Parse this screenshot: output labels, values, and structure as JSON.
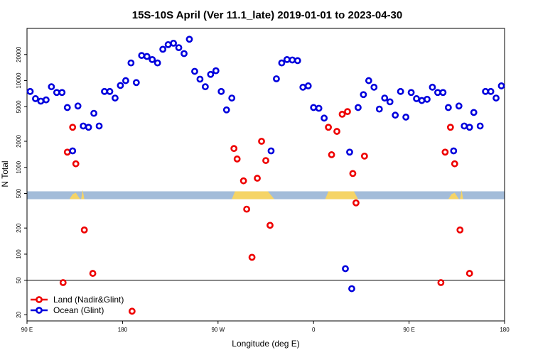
{
  "chart_data": {
    "type": "scatter",
    "title": "15S-10S April (Ver 11.1_late)   2019-01-01 to 2023-04-30",
    "xlabel": "Longitude (deg E)",
    "ylabel": "N Total",
    "y_scale": "log",
    "xlim": [
      90,
      540
    ],
    "ylim": [
      17,
      40000
    ],
    "x_ticks": [
      {
        "value": 90,
        "label": "90 E"
      },
      {
        "value": 180,
        "label": "180"
      },
      {
        "value": 270,
        "label": "90 W"
      },
      {
        "value": 360,
        "label": "0"
      },
      {
        "value": 450,
        "label": "90 E"
      },
      {
        "value": 540,
        "label": "180"
      }
    ],
    "y_ticks": [
      {
        "value": 20,
        "label": "20"
      },
      {
        "value": 50,
        "label": "50"
      },
      {
        "value": 100,
        "label": "100"
      },
      {
        "value": 200,
        "label": "200"
      },
      {
        "value": 500,
        "label": "500"
      },
      {
        "value": 1000,
        "label": "1000"
      },
      {
        "value": 2000,
        "label": "2000"
      },
      {
        "value": 5000,
        "label": "5000"
      },
      {
        "value": 10000,
        "label": "10000"
      },
      {
        "value": 20000,
        "label": "20000"
      }
    ],
    "reference_line": 50,
    "land_band": {
      "ymin": 430,
      "ymax": 530,
      "water_color": "#a3bcd9",
      "land_color": "#f5d466"
    },
    "legend_position": "bottom-left",
    "series": [
      {
        "name": "Land (Nadir&Glint)",
        "color": "#ee0000",
        "points": [
          [
            124,
            47
          ],
          [
            128,
            1500
          ],
          [
            133,
            2900
          ],
          [
            136,
            1100
          ],
          [
            144,
            190
          ],
          [
            152,
            60
          ],
          [
            189,
            22
          ],
          [
            285,
            1650
          ],
          [
            288,
            1250
          ],
          [
            294,
            700
          ],
          [
            297,
            330
          ],
          [
            302,
            92
          ],
          [
            307,
            750
          ],
          [
            311,
            2000
          ],
          [
            315,
            1200
          ],
          [
            319,
            215
          ],
          [
            374,
            2900
          ],
          [
            377,
            1400
          ],
          [
            382,
            2600
          ],
          [
            387,
            4100
          ],
          [
            392,
            4400
          ],
          [
            397,
            850
          ],
          [
            400,
            390
          ],
          [
            408,
            1350
          ],
          [
            480,
            47
          ],
          [
            484,
            1500
          ],
          [
            489,
            2900
          ],
          [
            493,
            1100
          ],
          [
            498,
            190
          ],
          [
            507,
            60
          ]
        ]
      },
      {
        "name": "Ocean (Glint)",
        "color": "#0000dd",
        "points": [
          [
            93,
            7500
          ],
          [
            98,
            6200
          ],
          [
            103,
            5800
          ],
          [
            108,
            6000
          ],
          [
            113,
            8500
          ],
          [
            118,
            7300
          ],
          [
            123,
            7300
          ],
          [
            128,
            4900
          ],
          [
            133,
            1550
          ],
          [
            138,
            5100
          ],
          [
            143,
            3000
          ],
          [
            148,
            2900
          ],
          [
            153,
            4200
          ],
          [
            158,
            3000
          ],
          [
            163,
            7500
          ],
          [
            168,
            7500
          ],
          [
            173,
            6300
          ],
          [
            178,
            8800
          ],
          [
            183,
            10000
          ],
          [
            188,
            16000
          ],
          [
            193,
            9500
          ],
          [
            198,
            19500
          ],
          [
            203,
            19000
          ],
          [
            208,
            17500
          ],
          [
            213,
            16000
          ],
          [
            218,
            23000
          ],
          [
            223,
            26000
          ],
          [
            228,
            27000
          ],
          [
            233,
            24000
          ],
          [
            238,
            20500
          ],
          [
            243,
            30000
          ],
          [
            248,
            12800
          ],
          [
            253,
            10400
          ],
          [
            258,
            8500
          ],
          [
            263,
            11800
          ],
          [
            268,
            13000
          ],
          [
            273,
            7500
          ],
          [
            278,
            4600
          ],
          [
            283,
            6300
          ],
          [
            320,
            1550
          ],
          [
            325,
            10500
          ],
          [
            330,
            16000
          ],
          [
            335,
            17500
          ],
          [
            340,
            17300
          ],
          [
            345,
            17000
          ],
          [
            350,
            8400
          ],
          [
            355,
            8700
          ],
          [
            360,
            4900
          ],
          [
            365,
            4800
          ],
          [
            370,
            3700
          ],
          [
            390,
            68
          ],
          [
            394,
            1500
          ],
          [
            396,
            40
          ],
          [
            402,
            4900
          ],
          [
            407,
            6900
          ],
          [
            412,
            10000
          ],
          [
            417,
            8400
          ],
          [
            422,
            4700
          ],
          [
            427,
            6300
          ],
          [
            432,
            5700
          ],
          [
            437,
            4000
          ],
          [
            442,
            7500
          ],
          [
            447,
            3800
          ],
          [
            452,
            7300
          ],
          [
            457,
            6200
          ],
          [
            462,
            5900
          ],
          [
            467,
            6100
          ],
          [
            472,
            8400
          ],
          [
            477,
            7300
          ],
          [
            482,
            7300
          ],
          [
            487,
            4900
          ],
          [
            492,
            1550
          ],
          [
            497,
            5100
          ],
          [
            502,
            3000
          ],
          [
            507,
            2900
          ],
          [
            511,
            4300
          ],
          [
            517,
            3000
          ],
          [
            522,
            7500
          ],
          [
            527,
            7500
          ],
          [
            532,
            6300
          ],
          [
            537,
            8700
          ]
        ]
      }
    ]
  }
}
